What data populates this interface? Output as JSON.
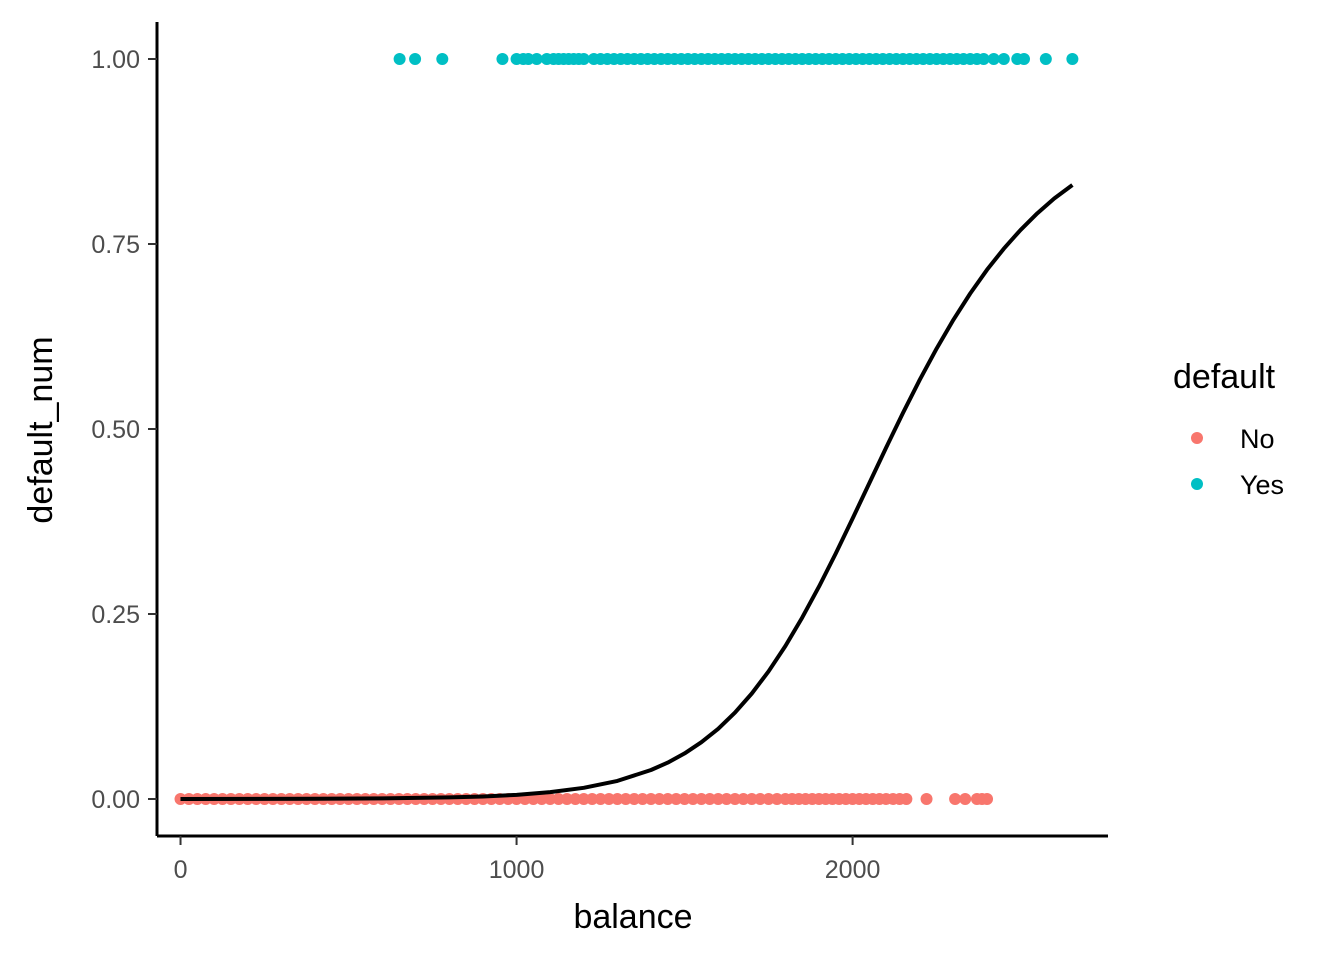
{
  "chart_data": {
    "type": "scatter",
    "xlabel": "balance",
    "ylabel": "default_num",
    "xlim": [
      -70,
      2760
    ],
    "ylim": [
      -0.05,
      1.05
    ],
    "x_ticks": [
      0,
      1000,
      2000
    ],
    "x_tick_labels": [
      "0",
      "1000",
      "2000"
    ],
    "y_ticks": [
      0,
      0.25,
      0.5,
      0.75,
      1
    ],
    "y_tick_labels": [
      "0.00",
      "0.25",
      "0.50",
      "0.75",
      "1.00"
    ],
    "grid": false,
    "legend": {
      "title": "default",
      "placement": "right",
      "entries": [
        {
          "label": "No",
          "color": "#F8766D"
        },
        {
          "label": "Yes",
          "color": "#00BFC4"
        }
      ]
    },
    "series": [
      {
        "name": "No",
        "color": "#F8766D",
        "y": 0,
        "x": [
          0,
          25,
          50,
          75,
          100,
          125,
          150,
          175,
          200,
          225,
          250,
          275,
          300,
          325,
          350,
          375,
          400,
          425,
          450,
          475,
          500,
          525,
          550,
          575,
          600,
          625,
          650,
          675,
          700,
          725,
          750,
          775,
          800,
          825,
          850,
          875,
          900,
          925,
          950,
          975,
          1000,
          1025,
          1050,
          1075,
          1100,
          1125,
          1150,
          1175,
          1200,
          1225,
          1250,
          1275,
          1300,
          1325,
          1350,
          1375,
          1400,
          1425,
          1450,
          1475,
          1500,
          1525,
          1550,
          1575,
          1600,
          1625,
          1650,
          1675,
          1700,
          1725,
          1750,
          1775,
          1800,
          1820,
          1840,
          1860,
          1880,
          1900,
          1920,
          1940,
          1960,
          1980,
          2000,
          2020,
          2040,
          2060,
          2080,
          2100,
          2120,
          2140,
          2160,
          2220,
          2305,
          2335,
          2370,
          2385,
          2400
        ]
      },
      {
        "name": "Yes",
        "color": "#00BFC4",
        "y": 1,
        "x": [
          652,
          698,
          779,
          958,
          1000,
          1020,
          1035,
          1060,
          1090,
          1110,
          1125,
          1140,
          1155,
          1170,
          1185,
          1200,
          1230,
          1250,
          1270,
          1290,
          1310,
          1330,
          1350,
          1370,
          1390,
          1410,
          1430,
          1450,
          1470,
          1490,
          1510,
          1530,
          1550,
          1570,
          1590,
          1610,
          1630,
          1650,
          1670,
          1690,
          1710,
          1730,
          1750,
          1770,
          1790,
          1810,
          1830,
          1850,
          1870,
          1890,
          1910,
          1930,
          1950,
          1970,
          1990,
          2010,
          2030,
          2050,
          2070,
          2090,
          2110,
          2130,
          2150,
          2170,
          2190,
          2210,
          2230,
          2250,
          2270,
          2290,
          2310,
          2330,
          2350,
          2370,
          2390,
          2420,
          2450,
          2490,
          2510,
          2575,
          2654
        ]
      },
      {
        "name": "",
        "type": "line",
        "color": "#000000",
        "x": [
          0,
          200,
          400,
          600,
          800,
          900,
          1000,
          1100,
          1200,
          1300,
          1400,
          1450,
          1500,
          1550,
          1600,
          1650,
          1700,
          1750,
          1800,
          1850,
          1900,
          1950,
          2000,
          2050,
          2100,
          2150,
          2200,
          2250,
          2300,
          2350,
          2400,
          2450,
          2500,
          2550,
          2600,
          2654
        ],
        "y": [
          0.0,
          0.0001,
          0.0003,
          0.0008,
          0.0021,
          0.0034,
          0.0056,
          0.0093,
          0.0151,
          0.0244,
          0.0392,
          0.0492,
          0.0616,
          0.0767,
          0.0949,
          0.1168,
          0.1426,
          0.1726,
          0.2068,
          0.2451,
          0.287,
          0.3319,
          0.379,
          0.427,
          0.475,
          0.5218,
          0.5666,
          0.6087,
          0.6476,
          0.6831,
          0.7151,
          0.7437,
          0.7691,
          0.7916,
          0.8115,
          0.8297
        ]
      }
    ]
  }
}
